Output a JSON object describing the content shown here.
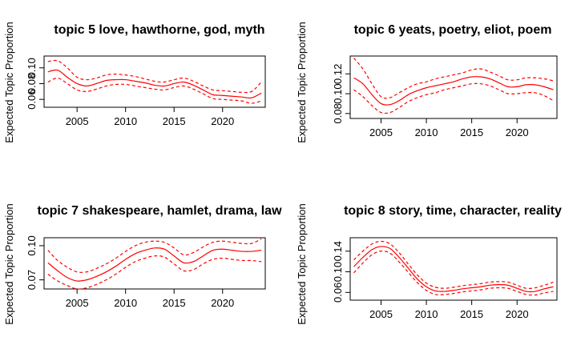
{
  "colors": {
    "series": "#ff0000",
    "axis": "#000000",
    "background": "#ffffff"
  },
  "chart_data": [
    {
      "type": "line",
      "title": "topic 5 love, hawthorne, god, myth",
      "ylabel": "Expected Topic Proportion",
      "xlabel": "",
      "xlim": [
        2001.6,
        2024.4
      ],
      "ylim": [
        0.05,
        0.115
      ],
      "xticks": [
        2005,
        2010,
        2015,
        2020
      ],
      "yticks": [
        0.06,
        0.08,
        0.1
      ],
      "grid": false,
      "x": [
        2002,
        2003,
        2004,
        2005,
        2006,
        2007,
        2008,
        2009,
        2010,
        2011,
        2012,
        2013,
        2014,
        2015,
        2016,
        2017,
        2018,
        2019,
        2020,
        2021,
        2022,
        2023,
        2024
      ],
      "series": [
        {
          "line": "solid",
          "values": [
            0.095,
            0.097,
            0.088,
            0.08,
            0.077,
            0.08,
            0.084,
            0.085,
            0.085,
            0.083,
            0.081,
            0.078,
            0.077,
            0.08,
            0.082,
            0.078,
            0.072,
            0.066,
            0.065,
            0.064,
            0.063,
            0.062,
            0.068
          ]
        },
        {
          "line": "dashed",
          "values": [
            0.108,
            0.109,
            0.1,
            0.088,
            0.085,
            0.087,
            0.091,
            0.092,
            0.091,
            0.089,
            0.086,
            0.083,
            0.082,
            0.085,
            0.087,
            0.083,
            0.077,
            0.072,
            0.071,
            0.07,
            0.069,
            0.07,
            0.082
          ]
        },
        {
          "line": "dashed",
          "values": [
            0.082,
            0.087,
            0.08,
            0.072,
            0.07,
            0.073,
            0.077,
            0.079,
            0.079,
            0.077,
            0.075,
            0.073,
            0.072,
            0.075,
            0.077,
            0.073,
            0.067,
            0.061,
            0.06,
            0.059,
            0.058,
            0.055,
            0.058
          ]
        }
      ]
    },
    {
      "type": "line",
      "title": "topic 6 yeats, poetry, eliot, poem",
      "ylabel": "Expected Topic Proportion",
      "xlabel": "",
      "xlim": [
        2001.6,
        2024.4
      ],
      "ylim": [
        0.075,
        0.138
      ],
      "xticks": [
        2005,
        2010,
        2015,
        2020
      ],
      "yticks": [
        0.08,
        0.1,
        0.12
      ],
      "grid": false,
      "x": [
        2002,
        2003,
        2004,
        2005,
        2006,
        2007,
        2008,
        2009,
        2010,
        2011,
        2012,
        2013,
        2014,
        2015,
        2016,
        2017,
        2018,
        2019,
        2020,
        2021,
        2022,
        2023,
        2024
      ],
      "series": [
        {
          "line": "solid",
          "values": [
            0.116,
            0.11,
            0.099,
            0.09,
            0.089,
            0.093,
            0.099,
            0.103,
            0.106,
            0.108,
            0.11,
            0.112,
            0.115,
            0.117,
            0.117,
            0.115,
            0.111,
            0.107,
            0.107,
            0.109,
            0.109,
            0.107,
            0.104
          ]
        },
        {
          "line": "dashed",
          "values": [
            0.136,
            0.125,
            0.11,
            0.097,
            0.096,
            0.101,
            0.106,
            0.11,
            0.112,
            0.115,
            0.117,
            0.119,
            0.121,
            0.124,
            0.125,
            0.122,
            0.118,
            0.114,
            0.114,
            0.116,
            0.116,
            0.115,
            0.113
          ]
        },
        {
          "line": "dashed",
          "values": [
            0.104,
            0.097,
            0.088,
            0.081,
            0.081,
            0.086,
            0.092,
            0.096,
            0.099,
            0.101,
            0.104,
            0.106,
            0.108,
            0.11,
            0.11,
            0.108,
            0.104,
            0.1,
            0.1,
            0.101,
            0.101,
            0.098,
            0.093
          ]
        }
      ]
    },
    {
      "type": "line",
      "title": "topic 7 shakespeare, hamlet, drama, law",
      "ylabel": "Expected Topic Proportion",
      "xlabel": "",
      "xlim": [
        2001.6,
        2024.4
      ],
      "ylim": [
        0.062,
        0.107
      ],
      "xticks": [
        2005,
        2010,
        2015,
        2020
      ],
      "yticks": [
        0.07,
        0.1
      ],
      "grid": false,
      "x": [
        2002,
        2003,
        2004,
        2005,
        2006,
        2007,
        2008,
        2009,
        2010,
        2011,
        2012,
        2013,
        2014,
        2015,
        2016,
        2017,
        2018,
        2019,
        2020,
        2021,
        2022,
        2023,
        2024
      ],
      "series": [
        {
          "line": "solid",
          "values": [
            0.085,
            0.078,
            0.072,
            0.069,
            0.07,
            0.073,
            0.077,
            0.082,
            0.088,
            0.093,
            0.096,
            0.098,
            0.097,
            0.091,
            0.085,
            0.086,
            0.091,
            0.096,
            0.097,
            0.096,
            0.095,
            0.095,
            0.096
          ]
        },
        {
          "line": "dashed",
          "values": [
            0.096,
            0.087,
            0.081,
            0.077,
            0.077,
            0.08,
            0.084,
            0.089,
            0.095,
            0.1,
            0.103,
            0.104,
            0.103,
            0.098,
            0.092,
            0.094,
            0.099,
            0.103,
            0.104,
            0.103,
            0.102,
            0.102,
            0.106
          ]
        },
        {
          "line": "dashed",
          "values": [
            0.075,
            0.069,
            0.065,
            0.062,
            0.063,
            0.066,
            0.07,
            0.075,
            0.081,
            0.086,
            0.089,
            0.091,
            0.09,
            0.084,
            0.078,
            0.079,
            0.084,
            0.088,
            0.089,
            0.088,
            0.087,
            0.087,
            0.086
          ]
        }
      ]
    },
    {
      "type": "line",
      "title": "topic 8 story, time, character, reality",
      "ylabel": "Expected Topic Proportion",
      "xlabel": "",
      "xlim": [
        2001.6,
        2024.4
      ],
      "ylim": [
        0.045,
        0.166
      ],
      "xticks": [
        2005,
        2010,
        2015,
        2020
      ],
      "yticks": [
        0.06,
        0.1,
        0.14
      ],
      "grid": false,
      "x": [
        2002,
        2003,
        2004,
        2005,
        2006,
        2007,
        2008,
        2009,
        2010,
        2011,
        2012,
        2013,
        2014,
        2015,
        2016,
        2017,
        2018,
        2019,
        2020,
        2021,
        2022,
        2023,
        2024
      ],
      "series": [
        {
          "line": "solid",
          "values": [
            0.11,
            0.128,
            0.143,
            0.149,
            0.145,
            0.128,
            0.107,
            0.086,
            0.071,
            0.063,
            0.062,
            0.064,
            0.067,
            0.069,
            0.071,
            0.074,
            0.075,
            0.074,
            0.068,
            0.062,
            0.062,
            0.067,
            0.071
          ]
        },
        {
          "line": "dashed",
          "values": [
            0.123,
            0.14,
            0.154,
            0.159,
            0.154,
            0.137,
            0.115,
            0.094,
            0.078,
            0.07,
            0.068,
            0.07,
            0.073,
            0.075,
            0.077,
            0.08,
            0.081,
            0.08,
            0.074,
            0.068,
            0.069,
            0.074,
            0.08
          ]
        },
        {
          "line": "dashed",
          "values": [
            0.098,
            0.117,
            0.133,
            0.14,
            0.136,
            0.119,
            0.099,
            0.079,
            0.064,
            0.056,
            0.056,
            0.058,
            0.061,
            0.063,
            0.065,
            0.068,
            0.069,
            0.068,
            0.062,
            0.056,
            0.055,
            0.059,
            0.062
          ]
        }
      ]
    }
  ]
}
